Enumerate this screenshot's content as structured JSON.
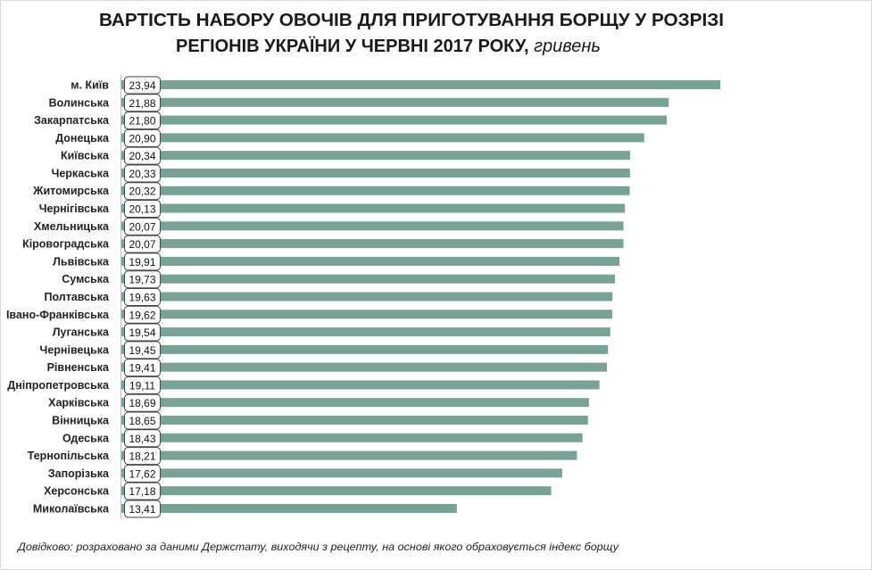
{
  "chart_data": {
    "type": "bar",
    "orientation": "horizontal",
    "title_line1": "ВАРТІСТЬ НАБОРУ ОВОЧІВ ДЛЯ ПРИГОТУВАННЯ БОРЩУ У РОЗРІЗІ",
    "title_line2": "РЕГІОНІВ УКРАЇНИ У ЧЕРВНІ 2017  РОКУ,",
    "title_unit": "гривень",
    "categories": [
      "м. Київ",
      "Волинська",
      "Закарпатська",
      "Донецька",
      "Київська",
      "Черкаська",
      "Житомирська",
      "Чернігівська",
      "Хмельницька",
      "Кіровоградська",
      "Львівська",
      "Сумська",
      "Полтавська",
      "Івано-Франківська",
      "Луганська",
      "Чернівецька",
      "Рівненська",
      "Дніпропетровська",
      "Харківська",
      "Вінницька",
      "Одеська",
      "Тернопільська",
      "Запорізька",
      "Херсонська",
      "Миколаївська"
    ],
    "values": [
      23.94,
      21.88,
      21.8,
      20.9,
      20.34,
      20.33,
      20.32,
      20.13,
      20.07,
      20.07,
      19.91,
      19.73,
      19.63,
      19.62,
      19.54,
      19.45,
      19.41,
      19.11,
      18.69,
      18.65,
      18.43,
      18.21,
      17.62,
      17.18,
      13.41
    ],
    "value_labels": [
      "23,94",
      "21,88",
      "21,80",
      "20,90",
      "20,34",
      "20,33",
      "20,32",
      "20,13",
      "20,07",
      "20,07",
      "19,91",
      "19,73",
      "19,63",
      "19,62",
      "19,54",
      "19,45",
      "19,41",
      "19,11",
      "18,69",
      "18,65",
      "18,43",
      "18,21",
      "17,62",
      "17,18",
      "13,41"
    ],
    "xlim": [
      0,
      24
    ],
    "grid": false,
    "legend": "none",
    "bar_color": "#76a395",
    "footnote": "Довідково:  розраховано за даними Держстату,  виходячи  з рецепту,  на основі якого обраховується  індекс борщу"
  }
}
